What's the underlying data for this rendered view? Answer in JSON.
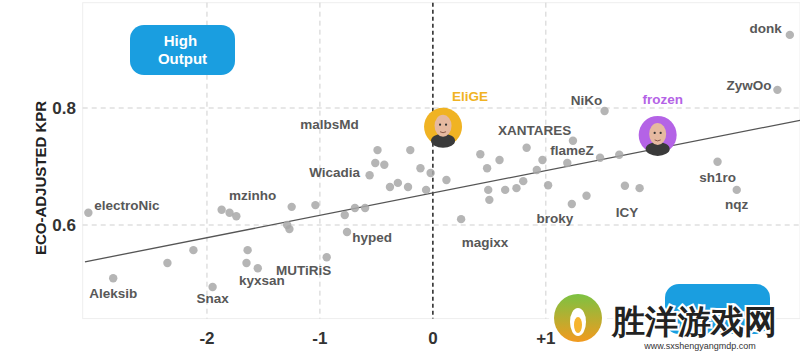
{
  "chart_data": {
    "type": "scatter",
    "y_label": "ECO-ADJUSTED KPR",
    "badge": "High Output",
    "watermark": {
      "title": "胜洋游戏网",
      "url": "www.sxshengyangmdp.com"
    },
    "xlim": [
      -3.1,
      3.25
    ],
    "ylim": [
      0.44,
      0.98
    ],
    "xticks": [
      -2,
      -1,
      0,
      {
        "value": 1,
        "label": "+1"
      }
    ],
    "yticks": [
      0.6,
      0.8
    ],
    "grid": true,
    "marker": "circle",
    "color": "#a8a8a8",
    "labels": [
      "donk",
      "ZywOo",
      "NiKo",
      "frozen",
      "EliGE",
      "XANTARES",
      "flameZ",
      "malbsMd",
      "Wicadia",
      "mzinho",
      "electroNic",
      "hyped",
      "magixx",
      "broky",
      "ICY",
      "sh1ro",
      "nqz",
      "MUTiRiS",
      "kyxsan",
      "Snax",
      "Aleksib",
      null,
      null,
      null,
      null,
      null,
      null,
      null,
      null,
      null,
      null,
      null,
      null,
      null,
      null,
      null,
      null,
      null,
      null,
      null,
      null,
      null,
      null,
      null,
      null,
      null,
      null,
      null,
      null,
      null,
      null,
      null,
      null,
      null,
      null,
      null,
      null,
      null,
      null,
      null,
      null
    ],
    "x": [
      3.16,
      3.05,
      1.52,
      1.99,
      0.09,
      0.83,
      1.24,
      -0.49,
      -0.56,
      -1.25,
      -3.05,
      -0.76,
      0.25,
      1.23,
      1.7,
      2.52,
      2.69,
      -0.94,
      -1.55,
      -1.95,
      -2.83,
      -2.12,
      -2.35,
      -1.87,
      -1.8,
      -1.74,
      -1.64,
      -1.65,
      -1.29,
      -1.27,
      -1.04,
      -0.78,
      -0.69,
      -0.6,
      -0.43,
      -0.38,
      -0.31,
      -0.22,
      -0.2,
      -0.11,
      -0.06,
      -0.02,
      0.12,
      0.42,
      0.48,
      0.49,
      0.59,
      0.64,
      0.74,
      0.8,
      0.92,
      0.97,
      1.02,
      1.19,
      1.36,
      1.48,
      1.65,
      1.83,
      1.92,
      0.5,
      -0.51
    ],
    "values": [
      0.925,
      0.831,
      0.795,
      0.754,
      0.768,
      0.732,
      0.744,
      0.728,
      0.685,
      0.631,
      0.621,
      0.588,
      0.61,
      0.636,
      0.667,
      0.708,
      0.66,
      0.545,
      0.526,
      0.494,
      0.509,
      0.557,
      0.535,
      0.626,
      0.621,
      0.615,
      0.557,
      0.535,
      0.6,
      0.593,
      0.634,
      0.617,
      0.629,
      0.629,
      0.703,
      0.665,
      0.672,
      0.665,
      0.728,
      0.697,
      0.66,
      0.689,
      0.677,
      0.721,
      0.697,
      0.66,
      0.711,
      0.66,
      0.663,
      0.675,
      0.694,
      0.711,
      0.668,
      0.706,
      0.65,
      0.715,
      0.72,
      0.663,
      0.745,
      0.643,
      0.706
    ],
    "colors": [
      "#a8a8a8",
      "#a8a8a8",
      "#a8a8a8",
      "#b463e6",
      "#f0b323",
      "#a8a8a8",
      "#a8a8a8",
      "#a8a8a8",
      "#a8a8a8",
      "#a8a8a8",
      "#a8a8a8",
      "#a8a8a8",
      "#a8a8a8",
      "#a8a8a8",
      "#a8a8a8",
      "#a8a8a8",
      "#a8a8a8",
      "#a8a8a8",
      "#a8a8a8",
      "#a8a8a8",
      "#a8a8a8",
      "#a8a8a8",
      "#a8a8a8",
      "#a8a8a8",
      "#a8a8a8",
      "#a8a8a8",
      "#a8a8a8",
      "#a8a8a8",
      "#a8a8a8",
      "#a8a8a8",
      "#a8a8a8",
      "#a8a8a8",
      "#a8a8a8",
      "#a8a8a8",
      "#a8a8a8",
      "#a8a8a8",
      "#a8a8a8",
      "#a8a8a8",
      "#a8a8a8",
      "#a8a8a8",
      "#a8a8a8",
      "#a8a8a8",
      "#a8a8a8",
      "#a8a8a8",
      "#a8a8a8",
      "#a8a8a8",
      "#a8a8a8",
      "#a8a8a8",
      "#a8a8a8",
      "#a8a8a8",
      "#a8a8a8",
      "#a8a8a8",
      "#a8a8a8",
      "#a8a8a8",
      "#a8a8a8",
      "#a8a8a8",
      "#a8a8a8",
      "#a8a8a8",
      "#a8a8a8",
      "#a8a8a8",
      "#a8a8a8"
    ],
    "trend_line": {
      "x": [
        -3.08,
        3.25
      ],
      "values": [
        0.537,
        0.779
      ]
    }
  }
}
